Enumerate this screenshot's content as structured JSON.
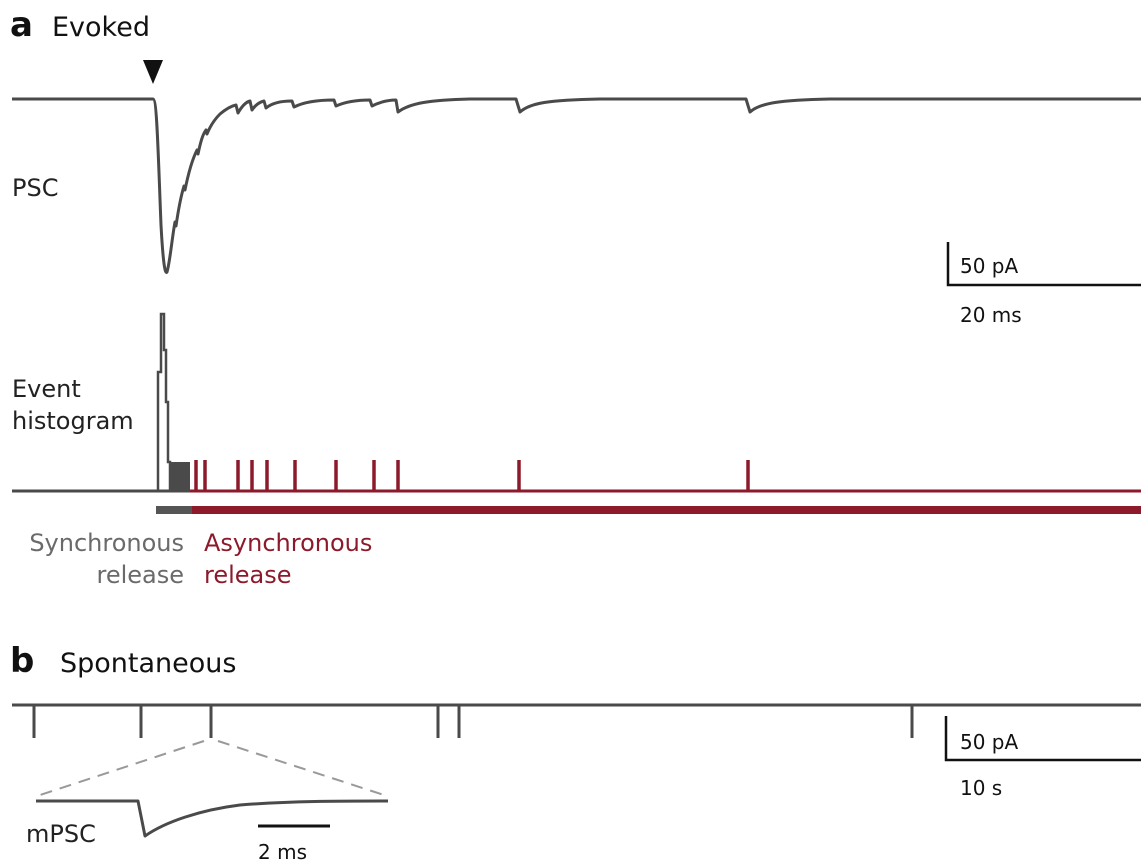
{
  "panel_a": {
    "letter": "a",
    "title": "Evoked",
    "psc_label": "PSC",
    "histogram_label_line1": "Event",
    "histogram_label_line2": "histogram",
    "scale_current": "50 pA",
    "scale_time": "20 ms",
    "sync_line1": "Synchronous",
    "sync_line2": "release",
    "async_line1": "Asynchronous",
    "async_line2": "release"
  },
  "panel_b": {
    "letter": "b",
    "title": "Spontaneous",
    "mpsc_label": "mPSC",
    "scale_current": "50 pA",
    "scale_time": "10 s",
    "inset_scale_time": "2 ms"
  },
  "colors": {
    "trace": "#4a4a4a",
    "async": "#8c1a2b",
    "sync_bar": "#555555",
    "dashed": "#999999",
    "text_sync": "#6a6a6a"
  }
}
